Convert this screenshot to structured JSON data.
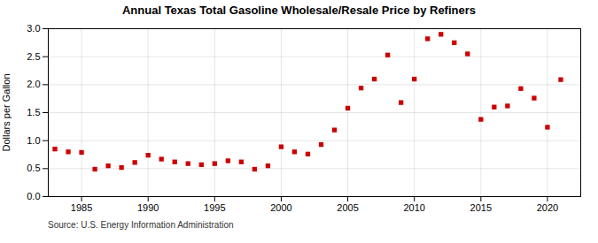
{
  "chart_data": {
    "type": "scatter",
    "title": "Annual Texas Total Gasoline Wholesale/Resale Price by Refiners",
    "ylabel": "Dollars per Gallon",
    "source": "Source: U.S. Energy Information Administration",
    "x": [
      1983,
      1984,
      1985,
      1986,
      1987,
      1988,
      1989,
      1990,
      1991,
      1992,
      1993,
      1994,
      1995,
      1996,
      1997,
      1998,
      1999,
      2000,
      2001,
      2002,
      2003,
      2004,
      2005,
      2006,
      2007,
      2008,
      2009,
      2010,
      2011,
      2012,
      2013,
      2014,
      2015,
      2016,
      2017,
      2018,
      2019,
      2020,
      2021
    ],
    "values": [
      0.85,
      0.8,
      0.79,
      0.49,
      0.55,
      0.52,
      0.61,
      0.74,
      0.67,
      0.62,
      0.59,
      0.57,
      0.59,
      0.64,
      0.62,
      0.49,
      0.55,
      0.89,
      0.8,
      0.76,
      0.93,
      1.19,
      1.58,
      1.94,
      2.1,
      2.53,
      1.68,
      2.1,
      2.82,
      2.9,
      2.75,
      2.55,
      1.38,
      1.6,
      1.62,
      1.93,
      1.76,
      1.24,
      2.09
    ],
    "color": "#cc0000",
    "marker": "square",
    "xlim": [
      1982.5,
      2022.5
    ],
    "xticks": [
      1985,
      1990,
      1995,
      2000,
      2005,
      2010,
      2015,
      2020
    ],
    "ylim": [
      0.0,
      3.0
    ],
    "yticks": [
      {
        "value": 0.0,
        "label": "0.0"
      },
      0.5,
      {
        "value": 1.0,
        "label": "1.0"
      },
      1.5,
      {
        "value": 2.0,
        "label": "2.0"
      },
      2.5,
      {
        "value": 3.0,
        "label": "3.0"
      }
    ],
    "grid": true
  }
}
